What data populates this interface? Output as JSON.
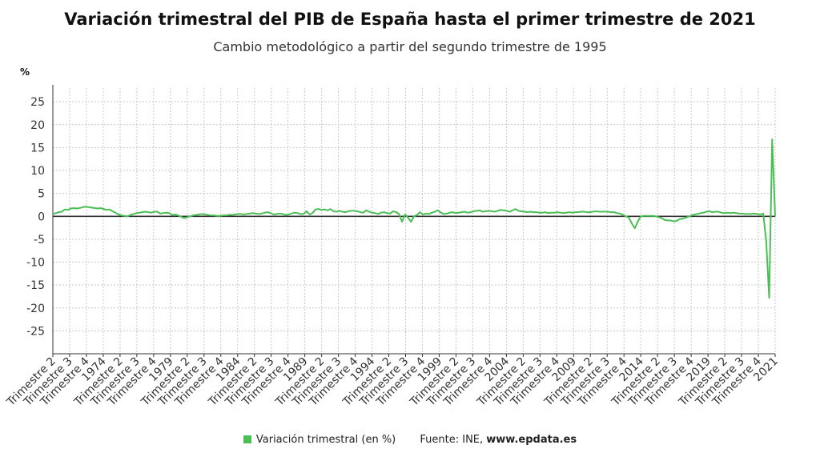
{
  "title": "Variación trimestral del PIB de España hasta el primer trimestre de 2021",
  "subtitle": "Cambio metodológico a partir del segundo trimestre de 1995",
  "unit": "%",
  "legend": {
    "label": "Variación trimestral (en %)",
    "color": "#4bbf55"
  },
  "source": {
    "prefix": "Fuente: INE, ",
    "site": "www.epdata.es"
  },
  "chart_data": {
    "type": "line",
    "ylim": [
      -30,
      28
    ],
    "yticks": [
      25,
      20,
      15,
      10,
      5,
      0,
      -5,
      -10,
      -15,
      -20,
      -25
    ],
    "grid": true,
    "legend_position": "bottom",
    "series": [
      {
        "name": "Variación trimestral (en %)",
        "color": "#4bbf55",
        "period": {
          "start": "1970 Trimestre 2",
          "end": "2021 Trimestre 1"
        },
        "values": [
          0.5,
          0.7,
          0.9,
          1.0,
          1.5,
          1.4,
          1.7,
          1.8,
          1.7,
          1.8,
          2.0,
          2.1,
          2.0,
          1.9,
          1.8,
          1.7,
          1.8,
          1.6,
          1.4,
          1.5,
          1.1,
          0.8,
          0.4,
          0.2,
          0.1,
          0.0,
          0.3,
          0.5,
          0.7,
          0.8,
          0.9,
          1.0,
          0.9,
          0.8,
          1.0,
          1.0,
          0.6,
          0.7,
          0.8,
          0.7,
          0.3,
          0.4,
          0.2,
          -0.1,
          -0.4,
          -0.2,
          0.0,
          0.2,
          0.3,
          0.4,
          0.5,
          0.4,
          0.3,
          0.2,
          0.2,
          0.1,
          0.1,
          0.2,
          0.2,
          0.3,
          0.3,
          0.4,
          0.5,
          0.5,
          0.4,
          0.5,
          0.6,
          0.7,
          0.6,
          0.5,
          0.6,
          0.8,
          0.9,
          0.7,
          0.4,
          0.5,
          0.6,
          0.5,
          0.3,
          0.4,
          0.6,
          0.8,
          0.7,
          0.5,
          0.5,
          1.1,
          0.4,
          0.7,
          1.5,
          1.6,
          1.4,
          1.5,
          1.3,
          1.6,
          1.1,
          1.0,
          1.2,
          1.0,
          0.9,
          1.1,
          1.2,
          1.2,
          1.1,
          0.9,
          0.8,
          1.3,
          1.0,
          0.8,
          0.7,
          0.5,
          0.8,
          0.9,
          0.7,
          0.6,
          1.1,
          0.9,
          0.5,
          -1.2,
          0.4,
          -0.3,
          -1.2,
          0.0,
          0.3,
          0.9,
          0.4,
          0.6,
          0.5,
          0.8,
          1.0,
          1.3,
          0.8,
          0.5,
          0.6,
          0.8,
          0.9,
          0.7,
          0.8,
          0.9,
          1.0,
          0.8,
          0.9,
          1.1,
          1.2,
          1.3,
          1.0,
          1.1,
          1.2,
          1.1,
          1.0,
          1.2,
          1.4,
          1.3,
          1.2,
          1.0,
          1.3,
          1.6,
          1.2,
          1.1,
          1.0,
          0.9,
          1.0,
          0.9,
          0.9,
          0.8,
          0.8,
          0.9,
          0.7,
          0.8,
          0.8,
          0.9,
          0.8,
          0.7,
          0.8,
          0.9,
          0.8,
          0.9,
          0.9,
          1.0,
          1.0,
          0.9,
          0.9,
          1.0,
          1.1,
          1.0,
          1.0,
          1.0,
          1.0,
          0.9,
          0.9,
          0.7,
          0.6,
          0.3,
          0.0,
          -0.3,
          -1.6,
          -2.6,
          -1.1,
          0.0,
          0.1,
          0.1,
          0.1,
          0.1,
          0.0,
          -0.2,
          -0.4,
          -0.8,
          -0.9,
          -0.9,
          -1.1,
          -1.0,
          -0.6,
          -0.5,
          -0.3,
          -0.1,
          0.2,
          0.4,
          0.5,
          0.7,
          0.8,
          1.0,
          1.1,
          0.9,
          1.0,
          1.0,
          0.8,
          0.7,
          0.8,
          0.7,
          0.8,
          0.7,
          0.6,
          0.6,
          0.5,
          0.5,
          0.5,
          0.6,
          0.5,
          0.4,
          0.6,
          -5.4,
          -17.8,
          16.8,
          0.0
        ]
      }
    ],
    "x_tick_labels": [
      "Trimestre 2",
      "Trimestre 3",
      "Trimestre 4",
      "1974",
      "Trimestre 2",
      "Trimestre 3",
      "Trimestre 4",
      "1979",
      "Trimestre 2",
      "Trimestre 3",
      "Trimestre 4",
      "1984",
      "Trimestre 2",
      "Trimestre 3",
      "Trimestre 4",
      "1989",
      "Trimestre 2",
      "Trimestre 3",
      "Trimestre 4",
      "1994",
      "Trimestre 2",
      "Trimestre 3",
      "Trimestre 4",
      "1999",
      "Trimestre 2",
      "Trimestre 3",
      "Trimestre 4",
      "2004",
      "Trimestre 2",
      "Trimestre 3",
      "Trimestre 4",
      "2009",
      "Trimestre 2",
      "Trimestre 3",
      "Trimestre 4",
      "2014",
      "Trimestre 2",
      "Trimestre 3",
      "Trimestre 4",
      "2019",
      "Trimestre 2",
      "Trimestre 3",
      "Trimestre 4",
      "2021"
    ]
  }
}
